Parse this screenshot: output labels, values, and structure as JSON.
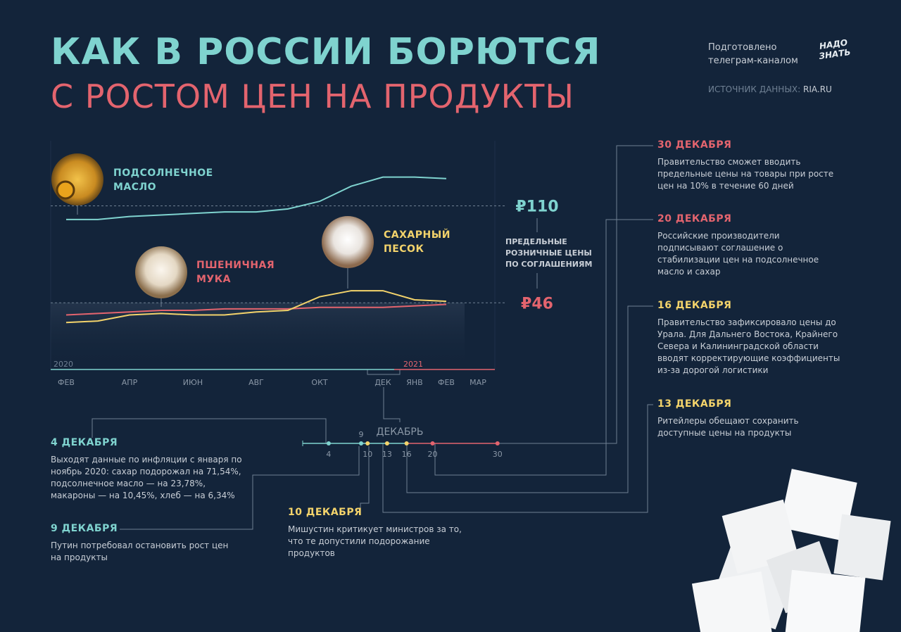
{
  "header": {
    "title": "КАК В РОССИИ БОРЮТСЯ",
    "subtitle": "С РОСТОМ ЦЕН НА ПРОДУКТЫ",
    "credit": "Подготовлено телеграм-каналом",
    "logo": "НАДО ЗНАТЬ",
    "source_label": "ИСТОЧНИК ДАННЫХ:",
    "source": "RIA.RU"
  },
  "chart_data": {
    "type": "line",
    "categories": [
      "ФЕВ",
      null,
      "АПР",
      null,
      "ИЮН",
      null,
      "АВГ",
      null,
      "ОКТ",
      null,
      "ДЕК",
      "ЯНВ",
      "ФЕВ",
      "МАР"
    ],
    "years": [
      "2020",
      "2021"
    ],
    "series": [
      {
        "name": "ПОДСОЛНЕЧНОЕ МАСЛО",
        "color": "#7fd3cf",
        "values": [
          101,
          101,
          103,
          104,
          105,
          106,
          106,
          108,
          113,
          123,
          129,
          129,
          128,
          null
        ]
      },
      {
        "name": "ПШЕНИЧНАЯ МУКА",
        "color": "#e3646e",
        "values": [
          38,
          39,
          40,
          41,
          41,
          42,
          42,
          42,
          43,
          43,
          43,
          44,
          45,
          null
        ]
      },
      {
        "name": "САХАРНЫЙ ПЕСОК",
        "color": "#f3d36b",
        "values": [
          33,
          34,
          38,
          39,
          38,
          38,
          40,
          41,
          50,
          54,
          54,
          48,
          47,
          null
        ]
      }
    ],
    "reference_lines": [
      {
        "value": 110,
        "label": "₽110",
        "color": "#7fd3cf"
      },
      {
        "value": 46,
        "label": "₽46",
        "color": "#e3646e"
      }
    ],
    "annotation": "ПРЕДЕЛЬНЫЕ РОЗНИЧНЫЕ ЦЕНЫ ПО СОГЛАШЕНИЯМ",
    "ylim": [
      2,
      153
    ]
  },
  "timeline": {
    "label": "ДЕКАБРЬ",
    "xlim": [
      0,
      31
    ],
    "days": [
      4,
      9,
      10,
      13,
      16,
      20,
      30
    ],
    "colors": [
      "#7fd3cf",
      "#7fd3cf",
      "#f3d36b",
      "#f3d36b",
      "#f3d36b",
      "#e3646e",
      "#e3646e"
    ]
  },
  "events": [
    {
      "date": "30 ДЕКАБРЯ",
      "color": "#e3646e",
      "text": "Правительство сможет вводить предельные цены на товары при росте цен на 10% в течение 60 дней"
    },
    {
      "date": "20 ДЕКАБРЯ",
      "color": "#e3646e",
      "text": "Российские производители подписывают соглашение о стабилизации цен на подсолнечное масло и сахар"
    },
    {
      "date": "16 ДЕКАБРЯ",
      "color": "#f3d36b",
      "text": "Правительство зафиксировало цены до Урала. Для Дальнего Востока, Крайнего Севера и Калининградской области вводят корректирующие коэффициенты из-за дорогой логистики"
    },
    {
      "date": "13 ДЕКАБРЯ",
      "color": "#f3d36b",
      "text": "Ритейлеры обещают сохранить доступные цены на продукты"
    },
    {
      "date": "4 ДЕКАБРЯ",
      "color": "#7fd3cf",
      "text": "Выходят данные по инфляции с января по ноябрь 2020: сахар подорожал на 71,54%, подсолнечное масло — на 23,78%, макароны — на 10,45%, хлеб — на 6,34%"
    },
    {
      "date": "9 ДЕКАБРЯ",
      "color": "#7fd3cf",
      "text": "Путин потребовал остановить рост цен на продукты"
    },
    {
      "date": "10 ДЕКАБРЯ",
      "color": "#f3d36b",
      "text": "Мишустин критикует министров за то, что те допустили подорожание продуктов"
    }
  ]
}
